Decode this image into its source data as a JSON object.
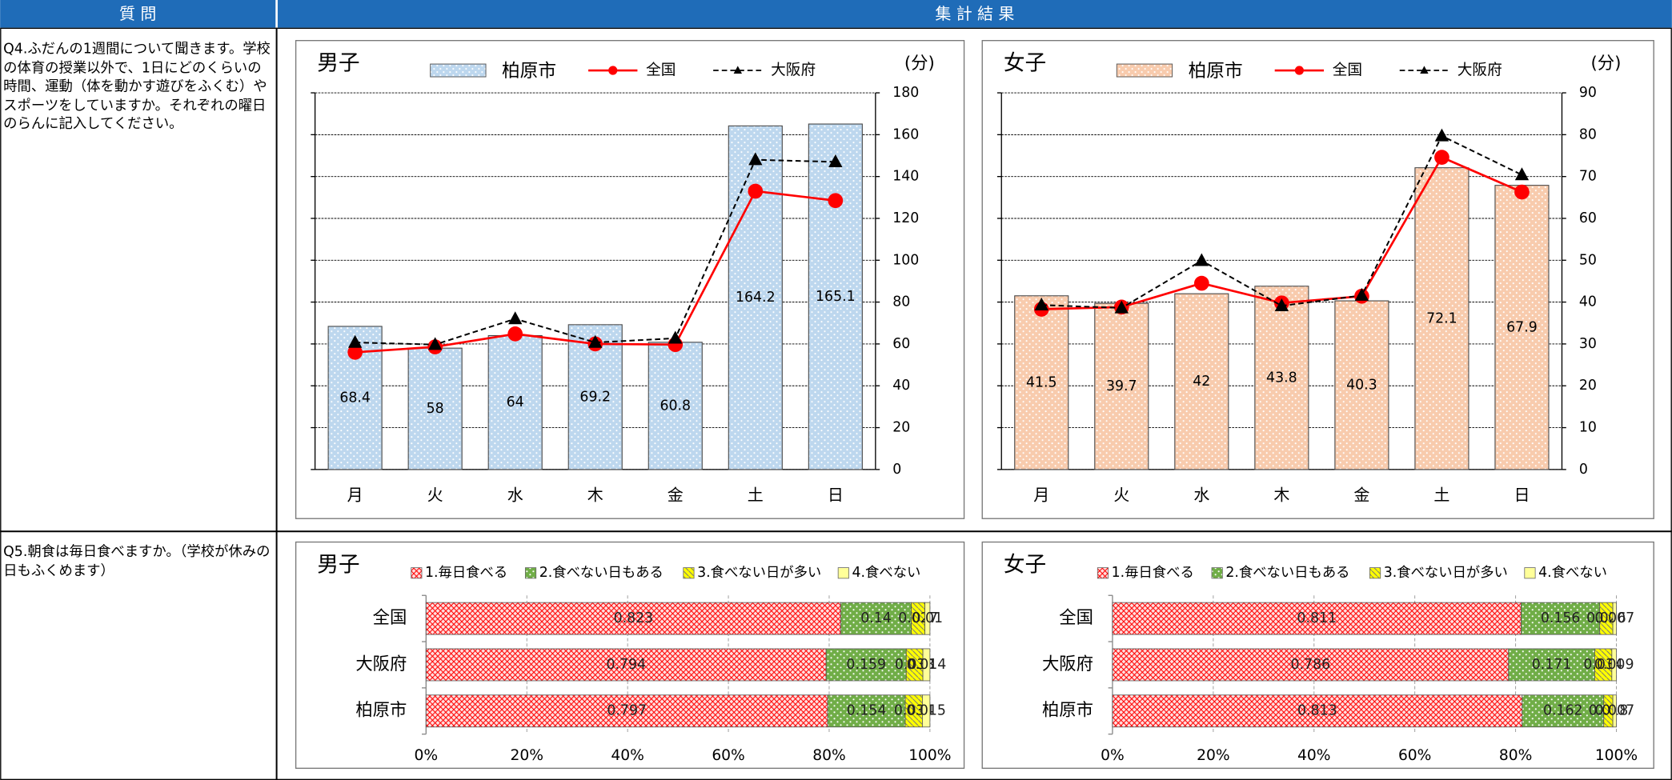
{
  "header": {
    "question": "質 問",
    "result": "集 計 結 果"
  },
  "questions": [
    "Q4.ふだんの1週間について聞きます。学校の体育の授業以外で、1日にどのくらいの時間、運動（体を動かす遊びをふくむ）やスポーツをしていますか。それぞれの曜日のらんに記入してください。",
    "Q5.朝食は毎日食べますか。（学校が休みの日もふくめます）"
  ],
  "chart_data": [
    {
      "type": "combo",
      "title": "男子",
      "unit": "(分)",
      "categories": [
        "月",
        "火",
        "水",
        "木",
        "金",
        "土",
        "日"
      ],
      "series": [
        {
          "name": "柏原市",
          "kind": "bar",
          "color": "#bdd7ee",
          "values": [
            68.4,
            58,
            64,
            69.2,
            60.8,
            164.2,
            165.1
          ]
        },
        {
          "name": "全国",
          "kind": "line",
          "color": "#ff0000",
          "marker": "circle",
          "values": [
            56,
            58.6,
            64.8,
            60,
            59.7,
            133,
            128.5
          ]
        },
        {
          "name": "大阪府",
          "kind": "line",
          "color": "#000000",
          "marker": "triangle",
          "dashed": true,
          "values": [
            60.7,
            59.7,
            72,
            60.7,
            62.7,
            148,
            147
          ]
        }
      ],
      "ylim": [
        0,
        180
      ],
      "yticks": [
        0,
        20,
        40,
        60,
        80,
        100,
        120,
        140,
        160,
        180
      ],
      "grid": true,
      "y_axis_side": "right"
    },
    {
      "type": "combo",
      "title": "女子",
      "unit": "(分)",
      "categories": [
        "月",
        "火",
        "水",
        "木",
        "金",
        "土",
        "日"
      ],
      "series": [
        {
          "name": "柏原市",
          "kind": "bar",
          "color": "#f8cbad",
          "values": [
            41.5,
            39.7,
            42,
            43.8,
            40.3,
            72.1,
            67.9
          ]
        },
        {
          "name": "全国",
          "kind": "line",
          "color": "#ff0000",
          "marker": "circle",
          "values": [
            38.3,
            38.8,
            44.5,
            39.8,
            41.4,
            74.6,
            66.3
          ]
        },
        {
          "name": "大阪府",
          "kind": "line",
          "color": "#000000",
          "marker": "triangle",
          "dashed": true,
          "values": [
            39.3,
            38.6,
            49.9,
            39.1,
            41.6,
            79.7,
            70.4
          ]
        }
      ],
      "ylim": [
        0,
        90
      ],
      "yticks": [
        0,
        10,
        20,
        30,
        40,
        50,
        60,
        70,
        80,
        90
      ],
      "grid": true,
      "y_axis_side": "right"
    },
    {
      "type": "stacked_bar",
      "orientation": "horizontal",
      "title": "男子",
      "categories": [
        "全国",
        "大阪府",
        "柏原市"
      ],
      "series": [
        {
          "name": "1.毎日食べる",
          "color": "#ff0000",
          "values": [
            0.823,
            0.794,
            0.797
          ]
        },
        {
          "name": "2.食べない日もある",
          "color": "#70ad47",
          "values": [
            0.14,
            0.159,
            0.154
          ]
        },
        {
          "name": "3.食べない日が多い",
          "color": "#ffff00",
          "values": [
            0.027,
            0.033,
            0.034
          ]
        },
        {
          "name": "4.食べない",
          "color": "#ffff99",
          "values": [
            0.01,
            0.014,
            0.015
          ]
        }
      ],
      "xlim": [
        0,
        1
      ],
      "xticks": [
        {
          "value": 0,
          "label": "0%"
        },
        {
          "value": 0.2,
          "label": "20%"
        },
        {
          "value": 0.4,
          "label": "40%"
        },
        {
          "value": 0.6,
          "label": "60%"
        },
        {
          "value": 0.8,
          "label": "80%"
        },
        {
          "value": 1,
          "label": "100%"
        }
      ],
      "grid": true
    },
    {
      "type": "stacked_bar",
      "orientation": "horizontal",
      "title": "女子",
      "categories": [
        "全国",
        "大阪府",
        "柏原市"
      ],
      "series": [
        {
          "name": "1.毎日食べる",
          "color": "#ff0000",
          "values": [
            0.811,
            0.786,
            0.813
          ]
        },
        {
          "name": "2.食べない日もある",
          "color": "#70ad47",
          "values": [
            0.156,
            0.171,
            0.162
          ]
        },
        {
          "name": "3.食べない日が多い",
          "color": "#ffff00",
          "values": [
            0.026,
            0.034,
            0.018
          ]
        },
        {
          "name": "4.食べない",
          "color": "#ffff99",
          "values": [
            0.007,
            0.009,
            0.007
          ]
        }
      ],
      "xlim": [
        0,
        1
      ],
      "xticks": [
        {
          "value": 0,
          "label": "0%"
        },
        {
          "value": 0.2,
          "label": "20%"
        },
        {
          "value": 0.4,
          "label": "40%"
        },
        {
          "value": 0.6,
          "label": "60%"
        },
        {
          "value": 0.8,
          "label": "80%"
        },
        {
          "value": 1,
          "label": "100%"
        }
      ],
      "grid": true
    }
  ]
}
